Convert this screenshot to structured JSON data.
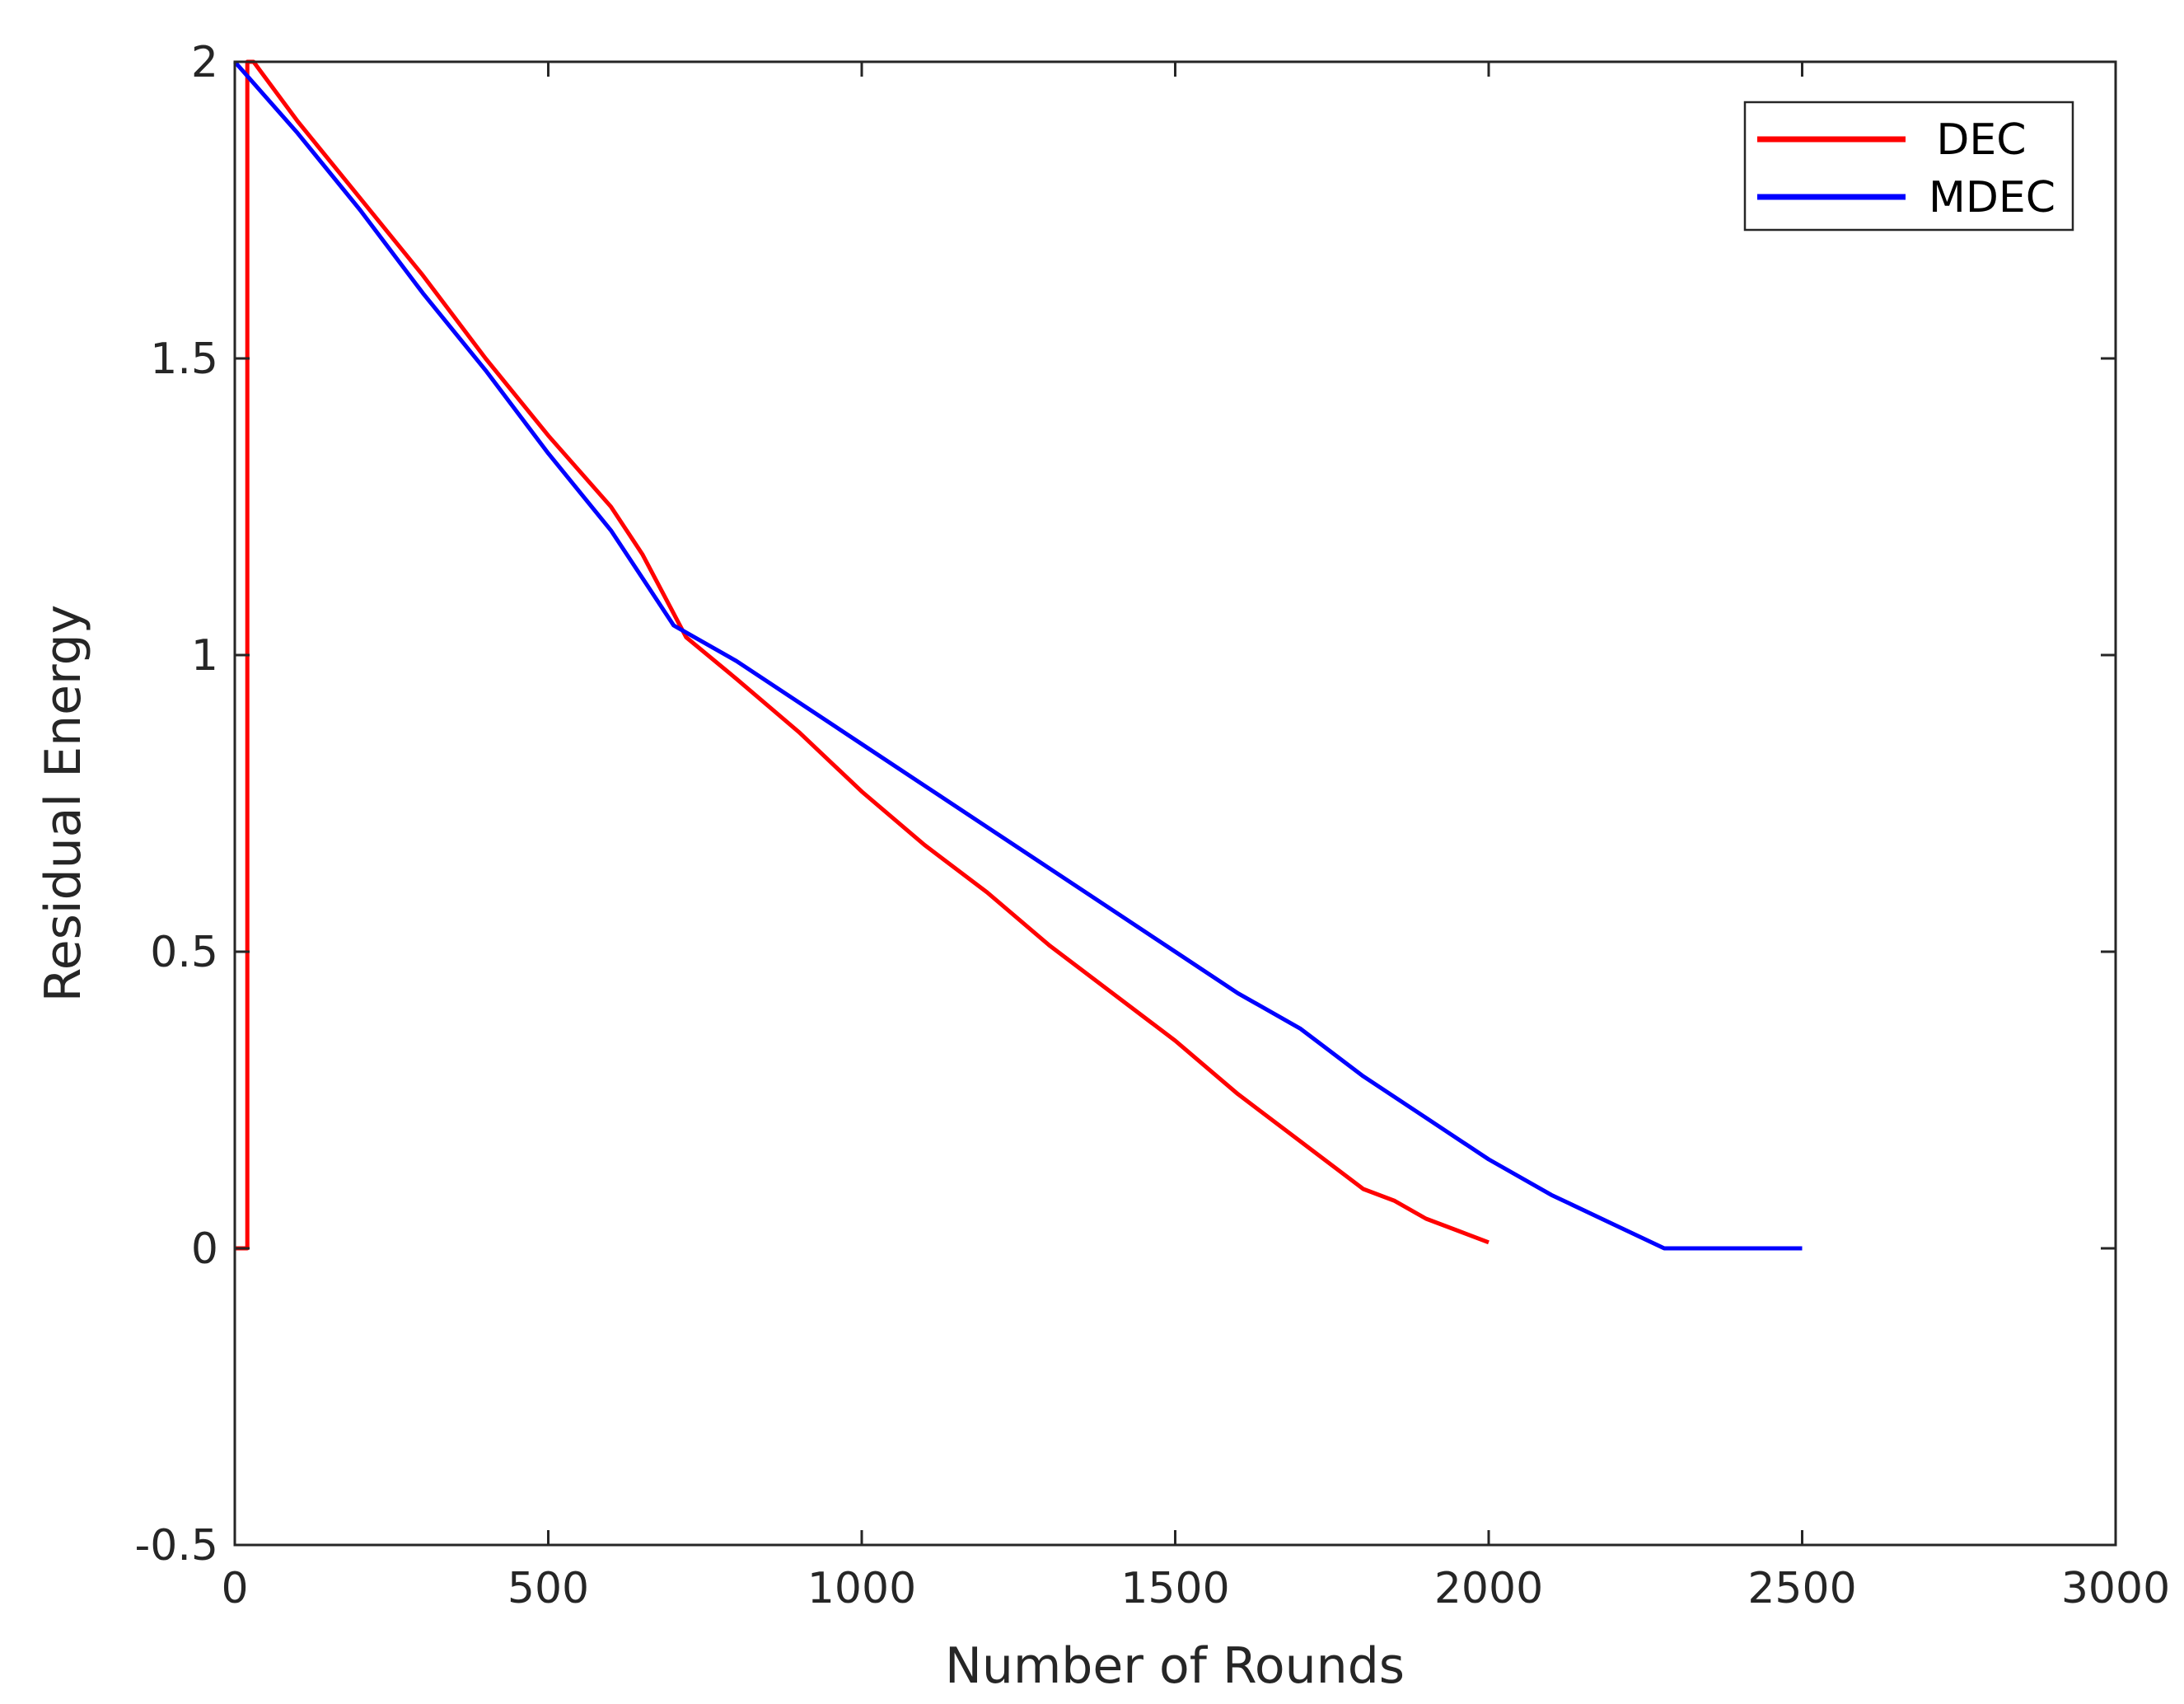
{
  "chart_data": {
    "type": "line",
    "title": "",
    "xlabel": "Number of Rounds",
    "ylabel": "Residual Energy",
    "xlim": [
      0,
      3000
    ],
    "ylim": [
      -0.5,
      2
    ],
    "xticks": [
      0,
      500,
      1000,
      1500,
      2000,
      2500,
      3000
    ],
    "xtick_labels": [
      "0",
      "500",
      "1000",
      "1500",
      "2000",
      "2500",
      "3000"
    ],
    "yticks": [
      -0.5,
      0,
      0.5,
      1,
      1.5,
      2
    ],
    "ytick_labels": [
      "-0.5",
      "0",
      "0.5",
      "1",
      "1.5",
      "2"
    ],
    "grid": false,
    "legend_position": "top-right",
    "series": [
      {
        "name": "DEC",
        "color": "#ff0000",
        "x": [
          0,
          20,
          20,
          30,
          100,
          200,
          300,
          400,
          500,
          600,
          650,
          700,
          720,
          800,
          900,
          1000,
          1100,
          1200,
          1300,
          1400,
          1500,
          1600,
          1700,
          1800,
          1850,
          1900,
          1950,
          2000
        ],
        "y": [
          0,
          0,
          2.0,
          2.0,
          1.9,
          1.77,
          1.64,
          1.5,
          1.37,
          1.25,
          1.17,
          1.07,
          1.03,
          0.96,
          0.87,
          0.77,
          0.68,
          0.6,
          0.51,
          0.43,
          0.35,
          0.26,
          0.18,
          0.1,
          0.08,
          0.05,
          0.03,
          0.01
        ]
      },
      {
        "name": "MDEC",
        "color": "#0000ff",
        "x": [
          0,
          100,
          200,
          300,
          400,
          500,
          600,
          650,
          700,
          800,
          900,
          1000,
          1100,
          1200,
          1300,
          1400,
          1500,
          1600,
          1700,
          1800,
          1900,
          2000,
          2100,
          2200,
          2280,
          2300,
          2400,
          2500
        ],
        "y": [
          2.0,
          1.88,
          1.75,
          1.61,
          1.48,
          1.34,
          1.21,
          1.13,
          1.05,
          0.99,
          0.92,
          0.85,
          0.78,
          0.71,
          0.64,
          0.57,
          0.5,
          0.43,
          0.37,
          0.29,
          0.22,
          0.15,
          0.09,
          0.04,
          0.0,
          0.0,
          0.0,
          0.0
        ]
      }
    ]
  }
}
